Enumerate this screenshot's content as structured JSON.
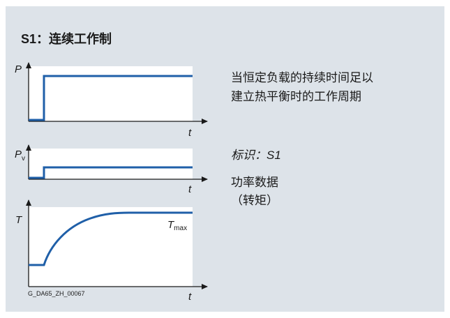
{
  "title": "S1：连续工作制",
  "description": [
    "当恒定负载的持续时间足以",
    "建立热平衡时的工作周期"
  ],
  "marking": "标识：S1",
  "power_data": [
    "功率数据",
    "（转矩）"
  ],
  "charts": {
    "power": {
      "ylabel": "P",
      "xlabel": "t"
    },
    "loss": {
      "ylabel": "P",
      "ylabel_sub": "v",
      "xlabel": "t"
    },
    "temperature": {
      "ylabel": "T",
      "xlabel": "t",
      "max_label": "T",
      "max_label_sub": "max"
    }
  },
  "figure_code": "G_DA65_ZH_00067",
  "colors": {
    "panel": "#dde3e9",
    "curve": "#1f5fa8",
    "axis": "#1a1a1a",
    "plot_bg": "#ffffff"
  }
}
